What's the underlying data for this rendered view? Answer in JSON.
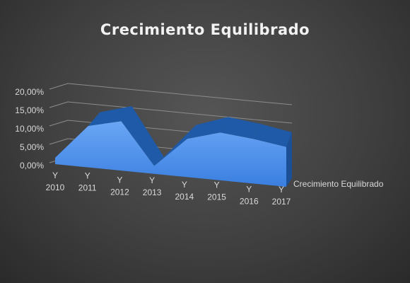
{
  "chart_data": {
    "type": "area",
    "title": "Crecimiento Equilibrado",
    "categories": [
      "Y 2010",
      "Y 2011",
      "Y 2012",
      "Y 2013",
      "Y 2014",
      "Y 2015",
      "Y 2016",
      "Y 2017"
    ],
    "series": [
      {
        "name": "Crecimiento Equilibrado",
        "values": [
          0.02,
          0.13,
          0.155,
          0.025,
          0.12,
          0.15,
          0.14,
          0.125
        ]
      }
    ],
    "y_tick_labels": [
      "0,00%",
      "5,00%",
      "10,00%",
      "15,00%",
      "20,00%"
    ],
    "ylim": [
      0,
      0.2
    ],
    "three_d": true,
    "grid": true,
    "legend": "right",
    "colors": {
      "series": "#3a7fe0",
      "series_dark": "#1f5aa8",
      "grid": "#8c8c8c",
      "text": "#d9d9d9",
      "title": "#f2f2f2"
    }
  }
}
